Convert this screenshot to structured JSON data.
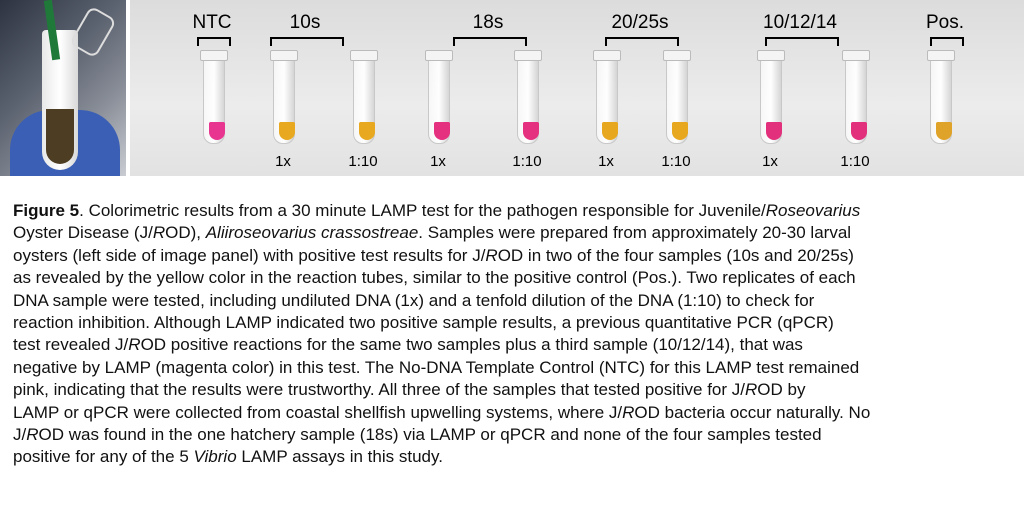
{
  "figure": {
    "groups": [
      {
        "label": "NTC",
        "tubes": [
          {
            "color": "#e8358f",
            "sub": ""
          }
        ]
      },
      {
        "label": "10s",
        "tubes": [
          {
            "color": "#e8a820",
            "sub": "1x"
          },
          {
            "color": "#e8a820",
            "sub": "1:10"
          }
        ]
      },
      {
        "label": "18s",
        "tubes": [
          {
            "color": "#e5307f",
            "sub": "1x"
          },
          {
            "color": "#e5307f",
            "sub": "1:10"
          }
        ]
      },
      {
        "label": "20/25s",
        "tubes": [
          {
            "color": "#e7a71e",
            "sub": "1x"
          },
          {
            "color": "#e7a71e",
            "sub": "1:10"
          }
        ]
      },
      {
        "label": "10/12/14",
        "tubes": [
          {
            "color": "#e2307c",
            "sub": "1x"
          },
          {
            "color": "#e2307c",
            "sub": "1:10"
          }
        ]
      },
      {
        "label": "Pos.",
        "tubes": [
          {
            "color": "#e0a32a",
            "sub": ""
          }
        ]
      }
    ]
  },
  "caption": {
    "lines": [
      [
        {
          "t": "Figure 5",
          "s": "b"
        },
        {
          "t": ". Colorimetric results from a 30 minute LAMP test for the pathogen responsible for Juvenile/"
        },
        {
          "t": "Roseovarius",
          "s": "i"
        }
      ],
      [
        {
          "t": "Oyster Disease (J/"
        },
        {
          "t": "R",
          "s": "i"
        },
        {
          "t": "OD), "
        },
        {
          "t": "Aliiroseovarius crassostreae",
          "s": "i"
        },
        {
          "t": ". Samples were prepared from approximately 20-30 larval"
        }
      ],
      [
        {
          "t": "oysters (left side of image panel) with positive test results for J/"
        },
        {
          "t": "R",
          "s": "i"
        },
        {
          "t": "OD in two of the four samples (10s and 20/25s)"
        }
      ],
      [
        {
          "t": "as revealed by the yellow color in the reaction tubes, similar to the positive control (Pos.). Two replicates of each"
        }
      ],
      [
        {
          "t": "DNA sample were tested, including undiluted DNA (1x) and a tenfold dilution of the DNA (1:10) to check for"
        }
      ],
      [
        {
          "t": "reaction inhibition. Although LAMP indicated two positive sample results, a previous quantitative PCR (qPCR)"
        }
      ],
      [
        {
          "t": "test revealed J/"
        },
        {
          "t": "R",
          "s": "i"
        },
        {
          "t": "OD positive reactions for the same two samples plus a third sample (10/12/14), that was"
        }
      ],
      [
        {
          "t": "negative by LAMP (magenta color) in this test. The No-DNA Template Control (NTC) for this LAMP test remained"
        }
      ],
      [
        {
          "t": "pink, indicating that the results were trustworthy. All three of the samples that tested positive for J/"
        },
        {
          "t": "R",
          "s": "i"
        },
        {
          "t": "OD by"
        }
      ],
      [
        {
          "t": "LAMP or qPCR were collected from coastal shellfish upwelling systems, where J/"
        },
        {
          "t": "R",
          "s": "i"
        },
        {
          "t": "OD bacteria occur naturally. No"
        }
      ],
      [
        {
          "t": "J/"
        },
        {
          "t": "R",
          "s": "i"
        },
        {
          "t": "OD was found in the one hatchery sample (18s) via LAMP or qPCR and none of the four samples tested"
        }
      ],
      [
        {
          "t": "positive for any of the 5 "
        },
        {
          "t": "Vibrio",
          "s": "i"
        },
        {
          "t": " LAMP assays in this study."
        }
      ]
    ]
  }
}
